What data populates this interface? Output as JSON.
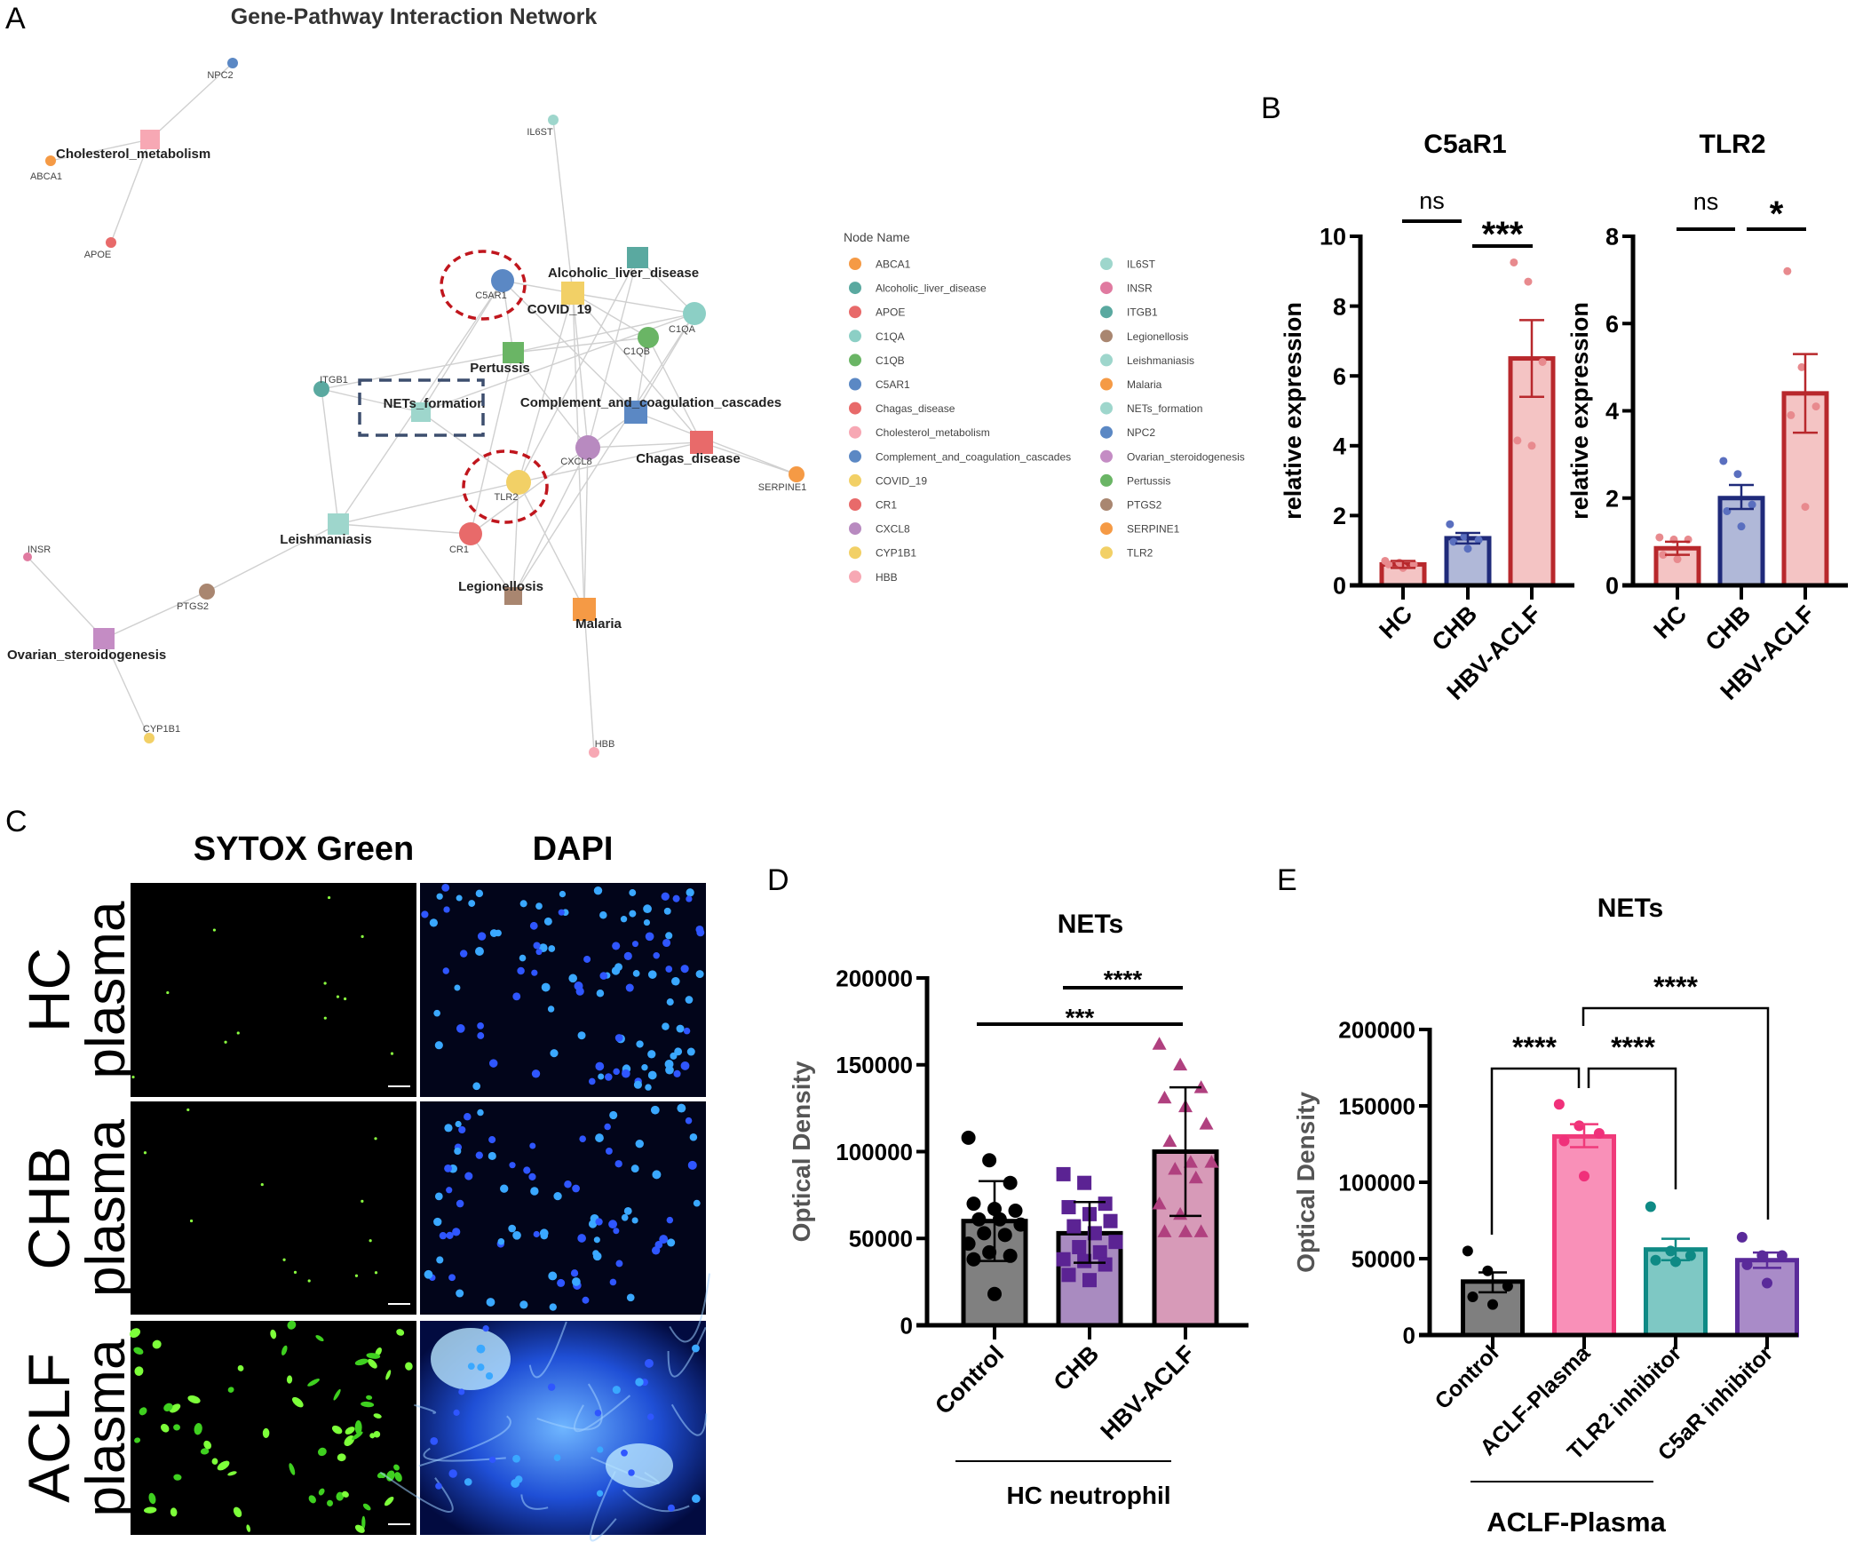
{
  "panel_labels": {
    "a": "A",
    "b": "B",
    "c": "C",
    "d": "D",
    "e": "E"
  },
  "network": {
    "title": "Gene-Pathway Interaction Network",
    "nodes": [
      {
        "name": "NPC2",
        "type": "gene",
        "color": "#5b88c4"
      },
      {
        "name": "Cholesterol_metabolism",
        "type": "pathway",
        "color": "#f7a8b4"
      },
      {
        "name": "ABCA1",
        "type": "gene",
        "color": "#f59a45"
      },
      {
        "name": "APOE",
        "type": "gene",
        "color": "#e86a6a"
      },
      {
        "name": "IL6ST",
        "type": "gene",
        "color": "#9ed6cc"
      },
      {
        "name": "C5AR1",
        "type": "gene",
        "color": "#5b88c4"
      },
      {
        "name": "COVID_19",
        "type": "pathway",
        "color": "#f2d066"
      },
      {
        "name": "Alcoholic_liver_disease",
        "type": "pathway",
        "color": "#5aa9a0"
      },
      {
        "name": "C1QA",
        "type": "gene",
        "color": "#8ccfc5"
      },
      {
        "name": "C1QB",
        "type": "gene",
        "color": "#6ab565"
      },
      {
        "name": "Pertussis",
        "type": "pathway",
        "color": "#6ab565"
      },
      {
        "name": "ITGB1",
        "type": "gene",
        "color": "#5aa9a0"
      },
      {
        "name": "NETs_formation",
        "type": "pathway",
        "color": "#9ed6cc"
      },
      {
        "name": "Complement_and_coagulation_cascades",
        "type": "pathway",
        "color": "#5b88c4"
      },
      {
        "name": "CXCL8",
        "type": "gene",
        "color": "#b88ac0"
      },
      {
        "name": "Chagas_disease",
        "type": "pathway",
        "color": "#e86a6a"
      },
      {
        "name": "SERPINE1",
        "type": "gene",
        "color": "#f59a45"
      },
      {
        "name": "TLR2",
        "type": "gene",
        "color": "#f2d066"
      },
      {
        "name": "Leishmaniasis",
        "type": "pathway",
        "color": "#9ed6cc"
      },
      {
        "name": "CR1",
        "type": "gene",
        "color": "#e86a6a"
      },
      {
        "name": "Legionellosis",
        "type": "pathway",
        "color": "#a98670"
      },
      {
        "name": "Malaria",
        "type": "pathway",
        "color": "#f59a45"
      },
      {
        "name": "INSR",
        "type": "gene",
        "color": "#e07aa0"
      },
      {
        "name": "PTGS2",
        "type": "gene",
        "color": "#a98670"
      },
      {
        "name": "Ovarian_steroidogenesis",
        "type": "pathway",
        "color": "#c48cc4"
      },
      {
        "name": "CYP1B1",
        "type": "gene",
        "color": "#f2d066"
      },
      {
        "name": "HBB",
        "type": "gene",
        "color": "#f7a8b4"
      }
    ],
    "edges": [
      [
        "NPC2",
        "Cholesterol_metabolism"
      ],
      [
        "Cholesterol_metabolism",
        "ABCA1"
      ],
      [
        "Cholesterol_metabolism",
        "APOE"
      ],
      [
        "IL6ST",
        "COVID_19"
      ],
      [
        "C5AR1",
        "COVID_19"
      ],
      [
        "C5AR1",
        "Pertussis"
      ],
      [
        "C5AR1",
        "Complement_and_coagulation_cascades"
      ],
      [
        "C5AR1",
        "NETs_formation"
      ],
      [
        "C5AR1",
        "Leishmaniasis"
      ],
      [
        "COVID_19",
        "C1QA"
      ],
      [
        "COVID_19",
        "C1QB"
      ],
      [
        "COVID_19",
        "CXCL8"
      ],
      [
        "COVID_19",
        "TLR2"
      ],
      [
        "COVID_19",
        "Chagas_disease"
      ],
      [
        "COVID_19",
        "Malaria"
      ],
      [
        "Alcoholic_liver_disease",
        "C1QA"
      ],
      [
        "Alcoholic_liver_disease",
        "CXCL8"
      ],
      [
        "Alcoholic_liver_disease",
        "TLR2"
      ],
      [
        "Pertussis",
        "C1QA"
      ],
      [
        "Pertussis",
        "C1QB"
      ],
      [
        "Pertussis",
        "ITGB1"
      ],
      [
        "Pertussis",
        "CXCL8"
      ],
      [
        "Pertussis",
        "CR1"
      ],
      [
        "Complement_and_coagulation_cascades",
        "C1QA"
      ],
      [
        "Complement_and_coagulation_cascades",
        "C1QB"
      ],
      [
        "Complement_and_coagulation_cascades",
        "CR1"
      ],
      [
        "Complement_and_coagulation_cascades",
        "SERPINE1"
      ],
      [
        "Chagas_disease",
        "C1QB"
      ],
      [
        "Chagas_disease",
        "CXCL8"
      ],
      [
        "Chagas_disease",
        "TLR2"
      ],
      [
        "Chagas_disease",
        "SERPINE1"
      ],
      [
        "ITGB1",
        "NETs_formation"
      ],
      [
        "ITGB1",
        "Leishmaniasis"
      ],
      [
        "NETs_formation",
        "TLR2"
      ],
      [
        "NETs_formation",
        "C1QA"
      ],
      [
        "Leishmaniasis",
        "TLR2"
      ],
      [
        "Leishmaniasis",
        "CR1"
      ],
      [
        "Leishmaniasis",
        "PTGS2"
      ],
      [
        "Legionellosis",
        "TLR2"
      ],
      [
        "Legionellosis",
        "CR1"
      ],
      [
        "Legionellosis",
        "CXCL8"
      ],
      [
        "Legionellosis",
        "C1QA"
      ],
      [
        "Malaria",
        "TLR2"
      ],
      [
        "Malaria",
        "CXCL8"
      ],
      [
        "Malaria",
        "HBB"
      ],
      [
        "PTGS2",
        "Ovarian_steroidogenesis"
      ],
      [
        "Ovarian_steroidogenesis",
        "INSR"
      ],
      [
        "Ovarian_steroidogenesis",
        "CYP1B1"
      ]
    ],
    "highlighted": [
      "C5AR1",
      "TLR2",
      "NETs_formation"
    ],
    "legend": {
      "title": "Node Name",
      "items": [
        {
          "name": "ABCA1",
          "color": "#f59a45"
        },
        {
          "name": "Alcoholic_liver_disease",
          "color": "#5aa9a0"
        },
        {
          "name": "APOE",
          "color": "#e86a6a"
        },
        {
          "name": "C1QA",
          "color": "#8ccfc5"
        },
        {
          "name": "C1QB",
          "color": "#6ab565"
        },
        {
          "name": "C5AR1",
          "color": "#5b88c4"
        },
        {
          "name": "Chagas_disease",
          "color": "#e86a6a"
        },
        {
          "name": "Cholesterol_metabolism",
          "color": "#f7a8b4"
        },
        {
          "name": "Complement_and_coagulation_cascades",
          "color": "#5b88c4"
        },
        {
          "name": "COVID_19",
          "color": "#f2d066"
        },
        {
          "name": "CR1",
          "color": "#e86a6a"
        },
        {
          "name": "CXCL8",
          "color": "#b88ac0"
        },
        {
          "name": "CYP1B1",
          "color": "#f2d066"
        },
        {
          "name": "HBB",
          "color": "#f7a8b4"
        },
        {
          "name": "IL6ST",
          "color": "#9ed6cc"
        },
        {
          "name": "INSR",
          "color": "#e07aa0"
        },
        {
          "name": "ITGB1",
          "color": "#5aa9a0"
        },
        {
          "name": "Legionellosis",
          "color": "#a98670"
        },
        {
          "name": "Leishmaniasis",
          "color": "#9ed6cc"
        },
        {
          "name": "Malaria",
          "color": "#f59a45"
        },
        {
          "name": "NETs_formation",
          "color": "#9ed6cc"
        },
        {
          "name": "NPC2",
          "color": "#5b88c4"
        },
        {
          "name": "Ovarian_steroidogenesis",
          "color": "#c48cc4"
        },
        {
          "name": "Pertussis",
          "color": "#6ab565"
        },
        {
          "name": "PTGS2",
          "color": "#a98670"
        },
        {
          "name": "SERPINE1",
          "color": "#f59a45"
        },
        {
          "name": "TLR2",
          "color": "#f2d066"
        }
      ]
    }
  },
  "panel_c": {
    "columns": [
      "SYTOX Green",
      "DAPI"
    ],
    "rows": [
      {
        "line1": "HC",
        "line2": "plasma"
      },
      {
        "line1": "CHB",
        "line2": "plasma"
      },
      {
        "line1": "ACLF",
        "line2": "plasma"
      }
    ]
  },
  "chart_data": [
    {
      "type": "bar",
      "title": "C5aR1",
      "ylabel": "relative expression",
      "xlabel": "",
      "categories": [
        "HC",
        "CHB",
        "HBV-ACLF"
      ],
      "ylim": [
        0,
        10
      ],
      "yticks": [
        0,
        2,
        4,
        6,
        8,
        10
      ],
      "grid": false,
      "series": [
        {
          "values": [
            0.6,
            1.35,
            6.5
          ],
          "err_low": [
            0.5,
            1.2,
            5.4
          ],
          "err_high": [
            0.7,
            1.5,
            7.6
          ],
          "points": [
            [
              0.7,
              0.65,
              0.6,
              0.6,
              0.5
            ],
            [
              1.75,
              1.4,
              1.3,
              1.25,
              1.05
            ],
            [
              9.25,
              8.7,
              6.4,
              4.15,
              4.0
            ]
          ]
        }
      ],
      "colors": {
        "fill": [
          "#f4c4c4",
          "#b0b8d8",
          "#f4c4c4"
        ],
        "stroke": [
          "#b8282c",
          "#1f2a7a",
          "#b8282c"
        ],
        "point": [
          "#e88a8e",
          "#5a6fbf",
          "#e88a8e"
        ]
      },
      "marker": "circle",
      "comparisons": [
        {
          "from": 0,
          "to": 1,
          "label": "ns"
        },
        {
          "from": 1,
          "to": 2,
          "label": "***"
        }
      ]
    },
    {
      "type": "bar",
      "title": "TLR2",
      "ylabel": "relative expression",
      "xlabel": "",
      "categories": [
        "HC",
        "CHB",
        "HBV-ACLF"
      ],
      "ylim": [
        0,
        8
      ],
      "yticks": [
        0,
        2,
        4,
        6,
        8
      ],
      "grid": false,
      "series": [
        {
          "values": [
            0.85,
            2.0,
            4.4
          ],
          "err_low": [
            0.7,
            1.75,
            3.5
          ],
          "err_high": [
            1.0,
            2.3,
            5.3
          ],
          "points": [
            [
              1.1,
              1.05,
              1.05,
              0.7,
              0.6
            ],
            [
              2.85,
              2.55,
              1.85,
              1.7,
              1.35
            ],
            [
              7.2,
              5.0,
              4.1,
              3.9,
              1.8
            ]
          ]
        }
      ],
      "colors": {
        "fill": [
          "#f4c4c4",
          "#b0b8d8",
          "#f4c4c4"
        ],
        "stroke": [
          "#b8282c",
          "#1f2a7a",
          "#b8282c"
        ],
        "point": [
          "#e88a8e",
          "#5a6fbf",
          "#e88a8e"
        ]
      },
      "marker": "circle",
      "comparisons": [
        {
          "from": 0,
          "to": 1,
          "label": "ns"
        },
        {
          "from": 1,
          "to": 2,
          "label": "*"
        }
      ]
    },
    {
      "type": "bar",
      "title": "NETs",
      "ylabel": "Optical Density",
      "xlabel": "",
      "group_label": "HC neutrophil",
      "categories": [
        "Control",
        "CHB",
        "HBV-ACLF"
      ],
      "ylim": [
        0,
        200000
      ],
      "yticks": [
        0,
        50000,
        100000,
        150000,
        200000
      ],
      "grid": false,
      "series": [
        {
          "values": [
            60000,
            53000,
            100000
          ],
          "err_low": [
            37000,
            36000,
            63000
          ],
          "err_high": [
            83000,
            71000,
            137000
          ],
          "points": [
            [
              108000,
              95000,
              82000,
              70000,
              67000,
              66000,
              61000,
              61000,
              58000,
              53000,
              52000,
              47000,
              42000,
              40000,
              38000,
              18000
            ],
            [
              87000,
              82000,
              70000,
              68000,
              64000,
              60000,
              57000,
              53000,
              48000,
              45000,
              42000,
              38000,
              37000,
              35000,
              29000,
              26000
            ],
            [
              162000,
              150000,
              137000,
              131000,
              126000,
              116000,
              106000,
              94000,
              94000,
              90000,
              85000,
              70000,
              64000,
              54000,
              54000,
              54000
            ]
          ]
        }
      ],
      "colors": {
        "fill": [
          "#808080",
          "#a98bc0",
          "#d79ab8"
        ],
        "stroke": [
          "#000000",
          "#000000",
          "#000000"
        ],
        "point": [
          "#000000",
          "#5b2393",
          "#b0407f"
        ]
      },
      "marker": [
        "circle",
        "square",
        "triangle"
      ],
      "comparisons": [
        {
          "from": 1,
          "to": 2,
          "label": "****"
        },
        {
          "from": 0,
          "to": 2,
          "label": "***"
        }
      ]
    },
    {
      "type": "bar",
      "title": "NETs",
      "ylabel": "Optical Density",
      "xlabel": "",
      "group_label": "ACLF-Plasma",
      "categories": [
        "Control",
        "ACLF-Plasma",
        "TLR2 inhibitor",
        "C5aR inhibitor"
      ],
      "ylim": [
        0,
        200000
      ],
      "yticks": [
        0,
        50000,
        100000,
        150000,
        200000
      ],
      "grid": false,
      "series": [
        {
          "values": [
            35000,
            130000,
            56000,
            49000
          ],
          "err_low": [
            28000,
            123000,
            49000,
            44000
          ],
          "err_high": [
            41000,
            138000,
            63000,
            54000
          ],
          "points": [
            [
              55000,
              42000,
              32000,
              25000,
              20000
            ],
            [
              151000,
              137000,
              132000,
              127000,
              104000
            ],
            [
              84000,
              55000,
              52000,
              49000,
              48000
            ],
            [
              64000,
              52000,
              52000,
              46000,
              34000
            ]
          ]
        }
      ],
      "colors": {
        "fill": [
          "#7f7f7f",
          "#f990b8",
          "#7ec8c4",
          "#a98bc8"
        ],
        "stroke": [
          "#000000",
          "#f03a7a",
          "#0e8a85",
          "#5a2a9a"
        ],
        "point": [
          "#000000",
          "#f0307a",
          "#0e8a85",
          "#5a2a9a"
        ]
      },
      "marker": "circle",
      "comparisons": [
        {
          "from": 0,
          "to": 1,
          "label": "****"
        },
        {
          "from": 1,
          "to": 2,
          "label": "****"
        },
        {
          "from": 1,
          "to": 3,
          "label": "****"
        }
      ]
    }
  ]
}
